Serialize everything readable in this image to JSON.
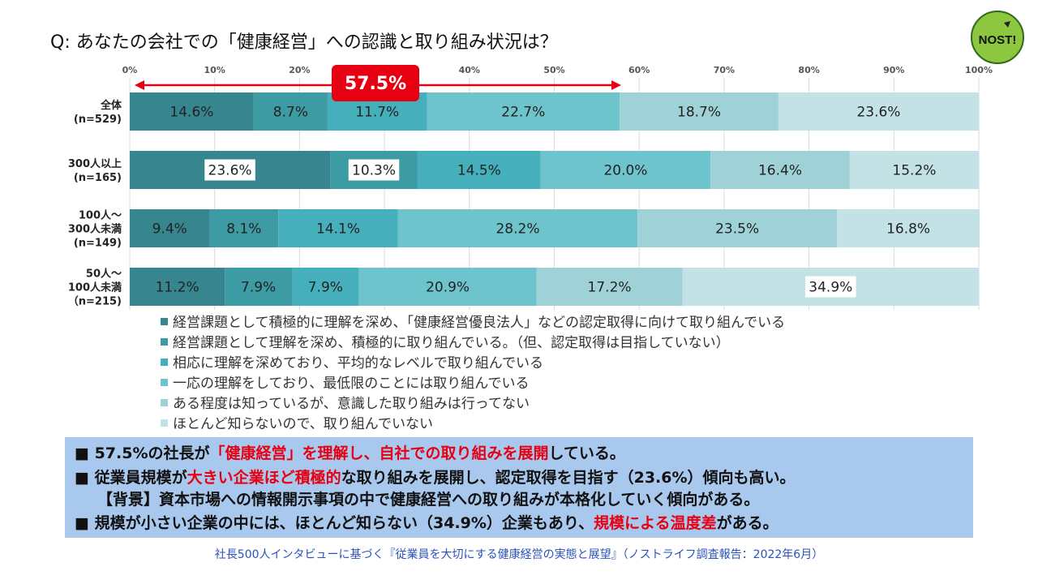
{
  "question": "Q: あなたの会社での「健康経営」への認識と取り組み状況は？",
  "logo_text": "NOST!",
  "callout": "57.5%",
  "chart_data": {
    "type": "bar",
    "orientation": "horizontal",
    "stacked": true,
    "xlim": [
      0,
      100
    ],
    "x_ticks": [
      "0%",
      "10%",
      "20%",
      "30%",
      "40%",
      "50%",
      "60%",
      "70%",
      "80%",
      "90%",
      "100%"
    ],
    "categories": [
      [
        "全体",
        "(n=529)"
      ],
      [
        "300人以上",
        "(n=165)"
      ],
      [
        "100人～",
        "300人未満",
        "(n=149)"
      ],
      [
        "50人～",
        "100人未満",
        "（n=215)"
      ]
    ],
    "series": [
      {
        "name": "経営課題として積極的に理解を深め、「健康経営優良法人」などの認定取得に向けて取り組んでいる",
        "color": "#37868f",
        "values": [
          14.6,
          23.6,
          9.4,
          11.2
        ]
      },
      {
        "name": "経営課題として理解を深め、積極的に取り組んでいる。（但、認定取得は目指していない）",
        "color": "#3c9ba3",
        "values": [
          8.7,
          10.3,
          8.1,
          7.9
        ]
      },
      {
        "name": "相応に理解を深めており、平均的なレベルで取り組んでいる",
        "color": "#45b0bb",
        "values": [
          11.7,
          14.5,
          14.1,
          7.9
        ]
      },
      {
        "name": "一応の理解をしており、最低限のことには取り組んでいる",
        "color": "#6ec4cc",
        "values": [
          22.7,
          20.0,
          28.2,
          20.9
        ]
      },
      {
        "name": "ある程度は知っているが、意識した取り組みは行ってない",
        "color": "#9fd2d7",
        "values": [
          18.7,
          16.4,
          23.5,
          17.2
        ]
      },
      {
        "name": "ほとんど知らないので、取り組んでいない",
        "color": "#c3e2e5",
        "values": [
          23.6,
          15.2,
          16.8,
          34.9
        ]
      }
    ],
    "labels": [
      [
        "14.6%",
        "8.7%",
        "11.7%",
        "22.7%",
        "18.7%",
        "23.6%"
      ],
      [
        "23.6%",
        "10.3%",
        "14.5%",
        "20.0%",
        "16.4%",
        "15.2%"
      ],
      [
        "9.4%",
        "8.1%",
        "14.1%",
        "28.2%",
        "23.5%",
        "16.8%"
      ],
      [
        "11.2%",
        "7.9%",
        "7.9%",
        "20.9%",
        "17.2%",
        "34.9%"
      ]
    ],
    "highlighted_labels": [
      [
        1,
        0
      ],
      [
        1,
        1
      ],
      [
        3,
        5
      ]
    ],
    "annotation": {
      "text": "57.5%",
      "from": 0,
      "to": 57.5
    }
  },
  "summary": {
    "line1": {
      "a": "■ 57.5%の社長が",
      "b": "「健康経営」を理解し、自社での取り組みを展開",
      "c": "している。"
    },
    "line2": {
      "a": "■ 従業員規模が",
      "b": "大きい企業ほど積極的",
      "c": "な取り組みを展開し、認定取得を目指す（23.6%）傾向も高い。"
    },
    "line3": "【背景】資本市場への情報開示事項の中で健康経営への取り組みが本格化していく傾向がある。",
    "line4": {
      "a": "■ 規模が小さい企業の中には、ほとんど知らない（34.9%）企業もあり、",
      "b": "規模による温度差",
      "c": "がある。"
    }
  },
  "footer": "社長500人インタビューに基づく『従業員を大切にする健康経営の実態と展望』（ノストライフ調査報告：2022年6月）"
}
